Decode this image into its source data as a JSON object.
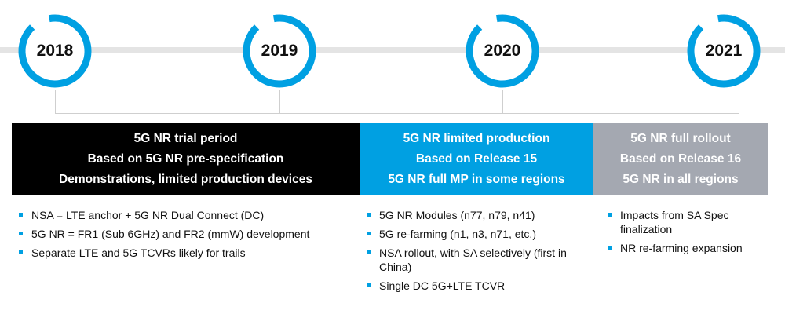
{
  "colors": {
    "accent": "#00a0e2",
    "black": "#000000",
    "gray": "#a4a8b1",
    "line": "#e4e4e4"
  },
  "milestones": [
    {
      "year": "2018"
    },
    {
      "year": "2019"
    },
    {
      "year": "2020"
    },
    {
      "year": "2021"
    }
  ],
  "phases": [
    {
      "lines": [
        "5G NR trial period",
        "Based on 5G NR pre-specification",
        "Demonstrations, limited production devices"
      ]
    },
    {
      "lines": [
        "5G NR limited production",
        "Based on Release 15",
        "5G NR full MP in some regions"
      ]
    },
    {
      "lines": [
        "5G NR full rollout",
        "Based on Release 16",
        "5G NR in all regions"
      ]
    }
  ],
  "bullets": [
    [
      "NSA = LTE anchor + 5G NR Dual Connect (DC)",
      "5G NR = FR1 (Sub 6GHz) and FR2 (mmW) development",
      "Separate LTE and 5G TCVRs likely for trails"
    ],
    [
      "5G NR Modules (n77, n79, n41)",
      "5G re-farming (n1, n3, n71, etc.)",
      "NSA rollout, with SA selectively (first in China)",
      "Single DC 5G+LTE TCVR"
    ],
    [
      "Impacts from SA Spec finalization",
      "NR re-farming expansion"
    ]
  ]
}
